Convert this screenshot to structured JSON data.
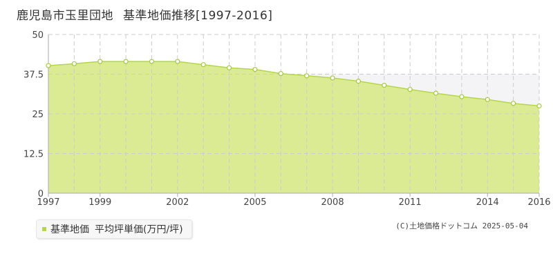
{
  "header": {
    "title_main": "鹿児島市玉里団地",
    "title_sub": "基準地価推移[1997-2016]"
  },
  "legend": {
    "series_name": "基準地価",
    "unit_label": "平均坪単価(万円/坪)"
  },
  "source": {
    "credit": "(C)土地価格ドットコム",
    "date": "2025-05-04"
  },
  "colors": {
    "fill": "#dbeb94",
    "line": "#b4d64a",
    "marker_fill": "#ffffff",
    "marker_stroke": "#a5c93a",
    "grid": "#cccccc",
    "above_band": "#f4f4f6",
    "axis": "#aaaaaa"
  },
  "chart_data": {
    "type": "area",
    "title": "鹿児島市玉里団地 基準地価推移[1997-2016]",
    "xlabel": "",
    "ylabel": "",
    "x": [
      1997,
      1998,
      1999,
      2000,
      2001,
      2002,
      2003,
      2004,
      2005,
      2006,
      2007,
      2008,
      2009,
      2010,
      2011,
      2012,
      2013,
      2014,
      2015,
      2016
    ],
    "x_tick_labels": [
      "1997",
      "1999",
      "2002",
      "2005",
      "2008",
      "2011",
      "2014",
      "2016"
    ],
    "y_ticks": [
      "0",
      "12.5",
      "25",
      "37.5",
      "50"
    ],
    "ylim": [
      0,
      50
    ],
    "xlim": [
      1997,
      2016
    ],
    "grid": true,
    "series": [
      {
        "name": "基準地価",
        "values": [
          40.2,
          40.8,
          41.5,
          41.5,
          41.5,
          41.5,
          40.5,
          39.5,
          39.0,
          37.7,
          37.0,
          36.3,
          35.3,
          34.0,
          32.7,
          31.5,
          30.4,
          29.5,
          28.3,
          27.5
        ]
      }
    ]
  }
}
